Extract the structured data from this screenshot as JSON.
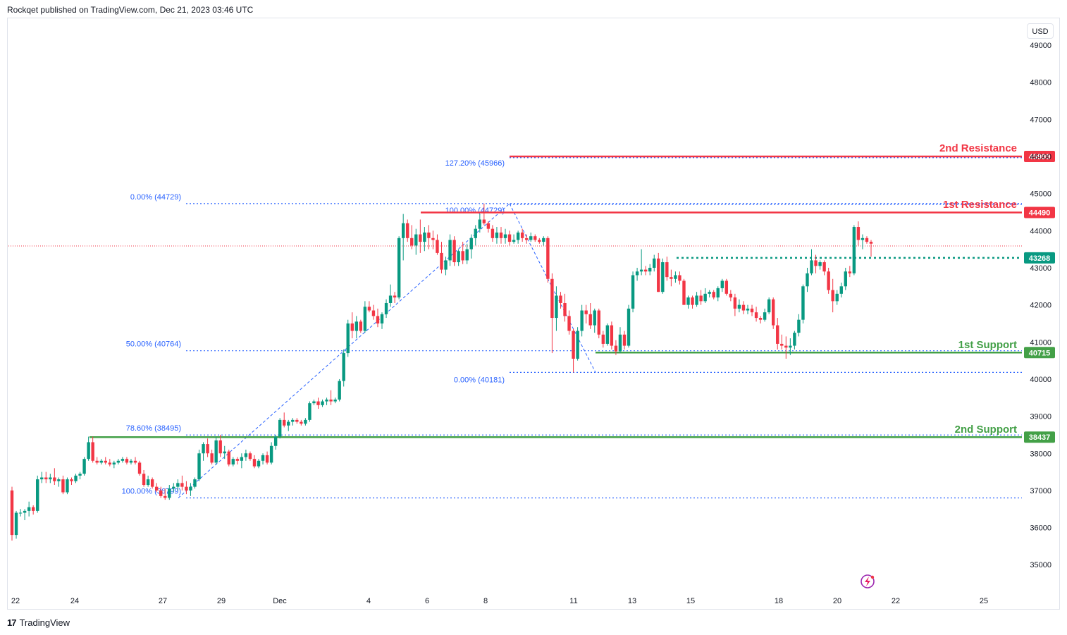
{
  "header": {
    "published": "Rockqet published on TradingView.com, Dec 21, 2023 03:46 UTC"
  },
  "price_axis": {
    "currency": "USD"
  },
  "footer": {
    "brand": "TradingView",
    "logo": "17"
  },
  "colors": {
    "up": "#089981",
    "down": "#f23645",
    "resistance": "#f23645",
    "support": "#43a047",
    "fib": "#2962ff",
    "current_line": "#089981"
  },
  "chart_data": {
    "type": "candlestick",
    "x_tick_labels": [
      "22",
      "24",
      "27",
      "29",
      "Dec",
      "4",
      "6",
      "8",
      "11",
      "13",
      "15",
      "18",
      "20",
      "22",
      "25"
    ],
    "y_tick_labels": [
      "49000",
      "48000",
      "47000",
      "46000",
      "45000",
      "44000",
      "43000",
      "42000",
      "41000",
      "40000",
      "39000",
      "38000",
      "37000",
      "36000",
      "35000"
    ],
    "ylim": [
      34700,
      49300
    ],
    "levels": [
      {
        "name": "2nd Resistance",
        "value": 45999,
        "tag": "45999",
        "kind": "resistance"
      },
      {
        "name": "1st Resistance",
        "value": 44490,
        "tag": "44490",
        "kind": "resistance"
      },
      {
        "name": "1st Support",
        "value": 40715,
        "tag": "40715",
        "kind": "support"
      },
      {
        "name": "2nd Support",
        "value": 38437,
        "tag": "38437",
        "kind": "support"
      }
    ],
    "current_price": {
      "value": 43268,
      "tag": "43268"
    },
    "fib_left": [
      {
        "label": "0.00% (44729)",
        "value": 44729
      },
      {
        "label": "50.00% (40764)",
        "value": 40764
      },
      {
        "label": "78.60% (38495)",
        "value": 38495
      },
      {
        "label": "100.00% (36799)",
        "value": 36799
      }
    ],
    "fib_right": [
      {
        "label": "127.20% (45966)",
        "value": 45966
      },
      {
        "label": "100.00% (44729)",
        "value": 44729
      },
      {
        "label": "0.00% (40181)",
        "value": 40181
      }
    ],
    "candles": [
      [
        37000,
        37100,
        35650,
        35800
      ],
      [
        35800,
        36450,
        35700,
        36400
      ],
      [
        36400,
        36500,
        36300,
        36400
      ],
      [
        36400,
        36500,
        36200,
        36450
      ],
      [
        36450,
        36700,
        36300,
        36550
      ],
      [
        36550,
        36600,
        36350,
        36450
      ],
      [
        36450,
        37400,
        36400,
        37300
      ],
      [
        37300,
        37500,
        37200,
        37350
      ],
      [
        37350,
        37500,
        37200,
        37300
      ],
      [
        37300,
        37450,
        37200,
        37350
      ],
      [
        37350,
        37600,
        37150,
        37250
      ],
      [
        37250,
        37350,
        37100,
        37300
      ],
      [
        37300,
        37400,
        36900,
        36950
      ],
      [
        36950,
        37350,
        36900,
        37300
      ],
      [
        37300,
        37350,
        37150,
        37250
      ],
      [
        37250,
        37450,
        37200,
        37400
      ],
      [
        37400,
        37500,
        37300,
        37450
      ],
      [
        37450,
        37900,
        37400,
        37850
      ],
      [
        37850,
        38450,
        37800,
        38300
      ],
      [
        38300,
        38450,
        37750,
        37800
      ],
      [
        37800,
        37900,
        37700,
        37750
      ],
      [
        37750,
        37850,
        37700,
        37800
      ],
      [
        37800,
        37900,
        37700,
        37750
      ],
      [
        37750,
        37850,
        37650,
        37700
      ],
      [
        37700,
        37800,
        37600,
        37750
      ],
      [
        37750,
        37850,
        37700,
        37800
      ],
      [
        37800,
        37900,
        37750,
        37850
      ],
      [
        37850,
        37900,
        37700,
        37750
      ],
      [
        37750,
        37850,
        37700,
        37800
      ],
      [
        37800,
        37900,
        37700,
        37750
      ],
      [
        37750,
        37800,
        37400,
        37450
      ],
      [
        37450,
        37550,
        37100,
        37150
      ],
      [
        37150,
        37400,
        37100,
        37300
      ],
      [
        37300,
        37350,
        37050,
        37100
      ],
      [
        37100,
        37200,
        36950,
        37000
      ],
      [
        37000,
        37100,
        36800,
        36850
      ],
      [
        36850,
        37050,
        36750,
        36800
      ],
      [
        36800,
        37150,
        36750,
        37050
      ],
      [
        37050,
        37200,
        36950,
        37100
      ],
      [
        37100,
        37300,
        37000,
        37200
      ],
      [
        37200,
        37400,
        37000,
        37100
      ],
      [
        37100,
        37250,
        36900,
        37000
      ],
      [
        37000,
        37200,
        36850,
        37100
      ],
      [
        37100,
        37350,
        37050,
        37300
      ],
      [
        37300,
        38100,
        37250,
        38000
      ],
      [
        38000,
        38300,
        37800,
        38250
      ],
      [
        38250,
        38400,
        37900,
        38000
      ],
      [
        38000,
        38100,
        37700,
        37750
      ],
      [
        37750,
        38450,
        37700,
        38350
      ],
      [
        38350,
        38500,
        37900,
        38000
      ],
      [
        38000,
        38200,
        37850,
        38050
      ],
      [
        38050,
        38100,
        37650,
        37700
      ],
      [
        37700,
        37900,
        37650,
        37850
      ],
      [
        37850,
        37900,
        37700,
        37800
      ],
      [
        37800,
        38000,
        37600,
        37900
      ],
      [
        37900,
        38100,
        37800,
        38000
      ],
      [
        38000,
        38050,
        37800,
        37850
      ],
      [
        37850,
        37950,
        37600,
        37650
      ],
      [
        37650,
        37850,
        37600,
        37800
      ],
      [
        37800,
        38000,
        37700,
        37950
      ],
      [
        37950,
        38050,
        37700,
        37750
      ],
      [
        37750,
        38300,
        37700,
        38200
      ],
      [
        38200,
        38500,
        38100,
        38450
      ],
      [
        38450,
        38950,
        38400,
        38900
      ],
      [
        38900,
        39100,
        38700,
        38750
      ],
      [
        38750,
        38900,
        38600,
        38850
      ],
      [
        38850,
        38950,
        38750,
        38900
      ],
      [
        38900,
        38950,
        38800,
        38850
      ],
      [
        38850,
        38900,
        38750,
        38800
      ],
      [
        38800,
        38950,
        38750,
        38900
      ],
      [
        38900,
        39400,
        38850,
        39350
      ],
      [
        39350,
        39450,
        39300,
        39400
      ],
      [
        39400,
        39500,
        39200,
        39300
      ],
      [
        39300,
        39450,
        39250,
        39400
      ],
      [
        39400,
        39500,
        39300,
        39450
      ],
      [
        39450,
        39700,
        39300,
        39400
      ],
      [
        39400,
        39500,
        39350,
        39450
      ],
      [
        39450,
        40000,
        39400,
        39950
      ],
      [
        39950,
        40800,
        39800,
        40700
      ],
      [
        40700,
        41600,
        40600,
        41500
      ],
      [
        41500,
        41800,
        41100,
        41300
      ],
      [
        41300,
        41700,
        41100,
        41550
      ],
      [
        41550,
        41600,
        41250,
        41300
      ],
      [
        41300,
        42100,
        41250,
        41950
      ],
      [
        41950,
        42100,
        41800,
        41850
      ],
      [
        41850,
        42000,
        41600,
        41700
      ],
      [
        41700,
        41900,
        41400,
        41500
      ],
      [
        41500,
        41800,
        41350,
        41750
      ],
      [
        41750,
        42150,
        41650,
        42050
      ],
      [
        42050,
        42550,
        41950,
        42250
      ],
      [
        42250,
        42350,
        42050,
        42200
      ],
      [
        42200,
        43850,
        42150,
        43800
      ],
      [
        43800,
        44450,
        43200,
        44200
      ],
      [
        44200,
        44300,
        43700,
        43800
      ],
      [
        43800,
        44150,
        43500,
        43600
      ],
      [
        43600,
        44050,
        43350,
        43900
      ],
      [
        43900,
        44300,
        43400,
        43700
      ],
      [
        43700,
        44100,
        43450,
        43950
      ],
      [
        43950,
        44150,
        43500,
        43800
      ],
      [
        43800,
        44000,
        43500,
        43750
      ],
      [
        43750,
        43900,
        43350,
        43400
      ],
      [
        43400,
        43700,
        42850,
        42950
      ],
      [
        42950,
        43300,
        42800,
        43200
      ],
      [
        43200,
        43900,
        43050,
        43750
      ],
      [
        43750,
        43850,
        43050,
        43150
      ],
      [
        43150,
        43500,
        43050,
        43450
      ],
      [
        43450,
        43700,
        43100,
        43200
      ],
      [
        43200,
        43650,
        43100,
        43500
      ],
      [
        43500,
        43900,
        43250,
        43800
      ],
      [
        43800,
        44150,
        43600,
        44050
      ],
      [
        44050,
        44450,
        43950,
        44300
      ],
      [
        44300,
        44729,
        44150,
        44200
      ],
      [
        44200,
        44250,
        43950,
        44050
      ],
      [
        44050,
        44150,
        43700,
        43800
      ],
      [
        43800,
        44100,
        43650,
        43950
      ],
      [
        43950,
        44100,
        43650,
        43800
      ],
      [
        43800,
        44050,
        43650,
        43900
      ],
      [
        43900,
        44000,
        43600,
        43700
      ],
      [
        43700,
        43900,
        43650,
        43750
      ],
      [
        43750,
        44000,
        43650,
        43950
      ],
      [
        43950,
        44050,
        43700,
        43800
      ],
      [
        43800,
        43900,
        43650,
        43750
      ],
      [
        43750,
        43950,
        43700,
        43850
      ],
      [
        43850,
        43900,
        43700,
        43750
      ],
      [
        43750,
        43800,
        43650,
        43700
      ],
      [
        43700,
        43850,
        43600,
        43800
      ],
      [
        43800,
        43850,
        42600,
        42700
      ],
      [
        42700,
        42850,
        40700,
        41650
      ],
      [
        41650,
        42500,
        41300,
        42250
      ],
      [
        42250,
        42350,
        41900,
        42050
      ],
      [
        42050,
        42300,
        41550,
        41700
      ],
      [
        41700,
        41850,
        41200,
        41300
      ],
      [
        41300,
        41350,
        40181,
        40550
      ],
      [
        40550,
        41400,
        40500,
        41300
      ],
      [
        41300,
        42000,
        41150,
        41850
      ],
      [
        41850,
        42000,
        41500,
        41750
      ],
      [
        41750,
        42050,
        41350,
        41450
      ],
      [
        41450,
        41900,
        41250,
        41850
      ],
      [
        41850,
        41900,
        41100,
        41200
      ],
      [
        41200,
        41300,
        40850,
        40950
      ],
      [
        40950,
        41500,
        40900,
        41450
      ],
      [
        41450,
        41550,
        40800,
        40900
      ],
      [
        40900,
        41050,
        40650,
        40750
      ],
      [
        40750,
        41400,
        40700,
        41200
      ],
      [
        41200,
        41300,
        40800,
        40900
      ],
      [
        40900,
        42000,
        40850,
        41900
      ],
      [
        41900,
        42900,
        41800,
        42800
      ],
      [
        42800,
        43000,
        42650,
        42900
      ],
      [
        42900,
        43500,
        42800,
        42950
      ],
      [
        42950,
        43050,
        42800,
        42900
      ],
      [
        42900,
        43100,
        42800,
        43000
      ],
      [
        43000,
        43350,
        42900,
        43250
      ],
      [
        43250,
        43400,
        42350,
        42350
      ],
      [
        42350,
        43250,
        42300,
        43150
      ],
      [
        43150,
        43300,
        42650,
        42750
      ],
      [
        42750,
        42950,
        42500,
        42700
      ],
      [
        42700,
        42900,
        42600,
        42800
      ],
      [
        42800,
        42900,
        42550,
        42650
      ],
      [
        42650,
        42700,
        42000,
        42000
      ],
      [
        42000,
        42250,
        41900,
        42200
      ],
      [
        42200,
        42250,
        41900,
        42000
      ],
      [
        42000,
        42350,
        41950,
        42250
      ],
      [
        42250,
        42400,
        42000,
        42100
      ],
      [
        42100,
        42450,
        42050,
        42300
      ],
      [
        42300,
        42400,
        42200,
        42350
      ],
      [
        42350,
        42400,
        42150,
        42200
      ],
      [
        42200,
        42500,
        42100,
        42450
      ],
      [
        42450,
        42700,
        42350,
        42650
      ],
      [
        42650,
        42700,
        42250,
        42300
      ],
      [
        42300,
        42400,
        42100,
        42200
      ],
      [
        42200,
        42300,
        41700,
        41900
      ],
      [
        41900,
        42150,
        41800,
        42000
      ],
      [
        42000,
        42100,
        41750,
        41850
      ],
      [
        41850,
        42000,
        41750,
        41900
      ],
      [
        41900,
        42000,
        41700,
        41800
      ],
      [
        41800,
        41950,
        41550,
        41650
      ],
      [
        41650,
        41700,
        41500,
        41600
      ],
      [
        41600,
        41900,
        41550,
        41800
      ],
      [
        41800,
        42200,
        41750,
        42150
      ],
      [
        42150,
        42200,
        41350,
        41450
      ],
      [
        41450,
        41650,
        40800,
        40950
      ],
      [
        40950,
        41200,
        40800,
        40900
      ],
      [
        40900,
        41150,
        40550,
        40850
      ],
      [
        40850,
        41100,
        40650,
        40900
      ],
      [
        40900,
        41300,
        40800,
        41250
      ],
      [
        41250,
        41750,
        41150,
        41600
      ],
      [
        41600,
        42550,
        41500,
        42500
      ],
      [
        42500,
        43000,
        42350,
        42850
      ],
      [
        42850,
        43500,
        42800,
        43200
      ],
      [
        43200,
        43350,
        42850,
        43050
      ],
      [
        43050,
        43200,
        42950,
        43150
      ],
      [
        43150,
        43200,
        42800,
        42900
      ],
      [
        42900,
        43000,
        42300,
        42400
      ],
      [
        42400,
        42700,
        41800,
        42100
      ],
      [
        42100,
        42400,
        42000,
        42300
      ],
      [
        42300,
        42600,
        42200,
        42500
      ],
      [
        42500,
        43000,
        42400,
        42900
      ],
      [
        42900,
        43050,
        42750,
        42850
      ],
      [
        42850,
        44150,
        42800,
        44100
      ],
      [
        44100,
        44250,
        43600,
        43750
      ],
      [
        43750,
        43900,
        43500,
        43800
      ],
      [
        43800,
        43850,
        43650,
        43700
      ],
      [
        43700,
        43750,
        43300,
        43650
      ]
    ]
  }
}
